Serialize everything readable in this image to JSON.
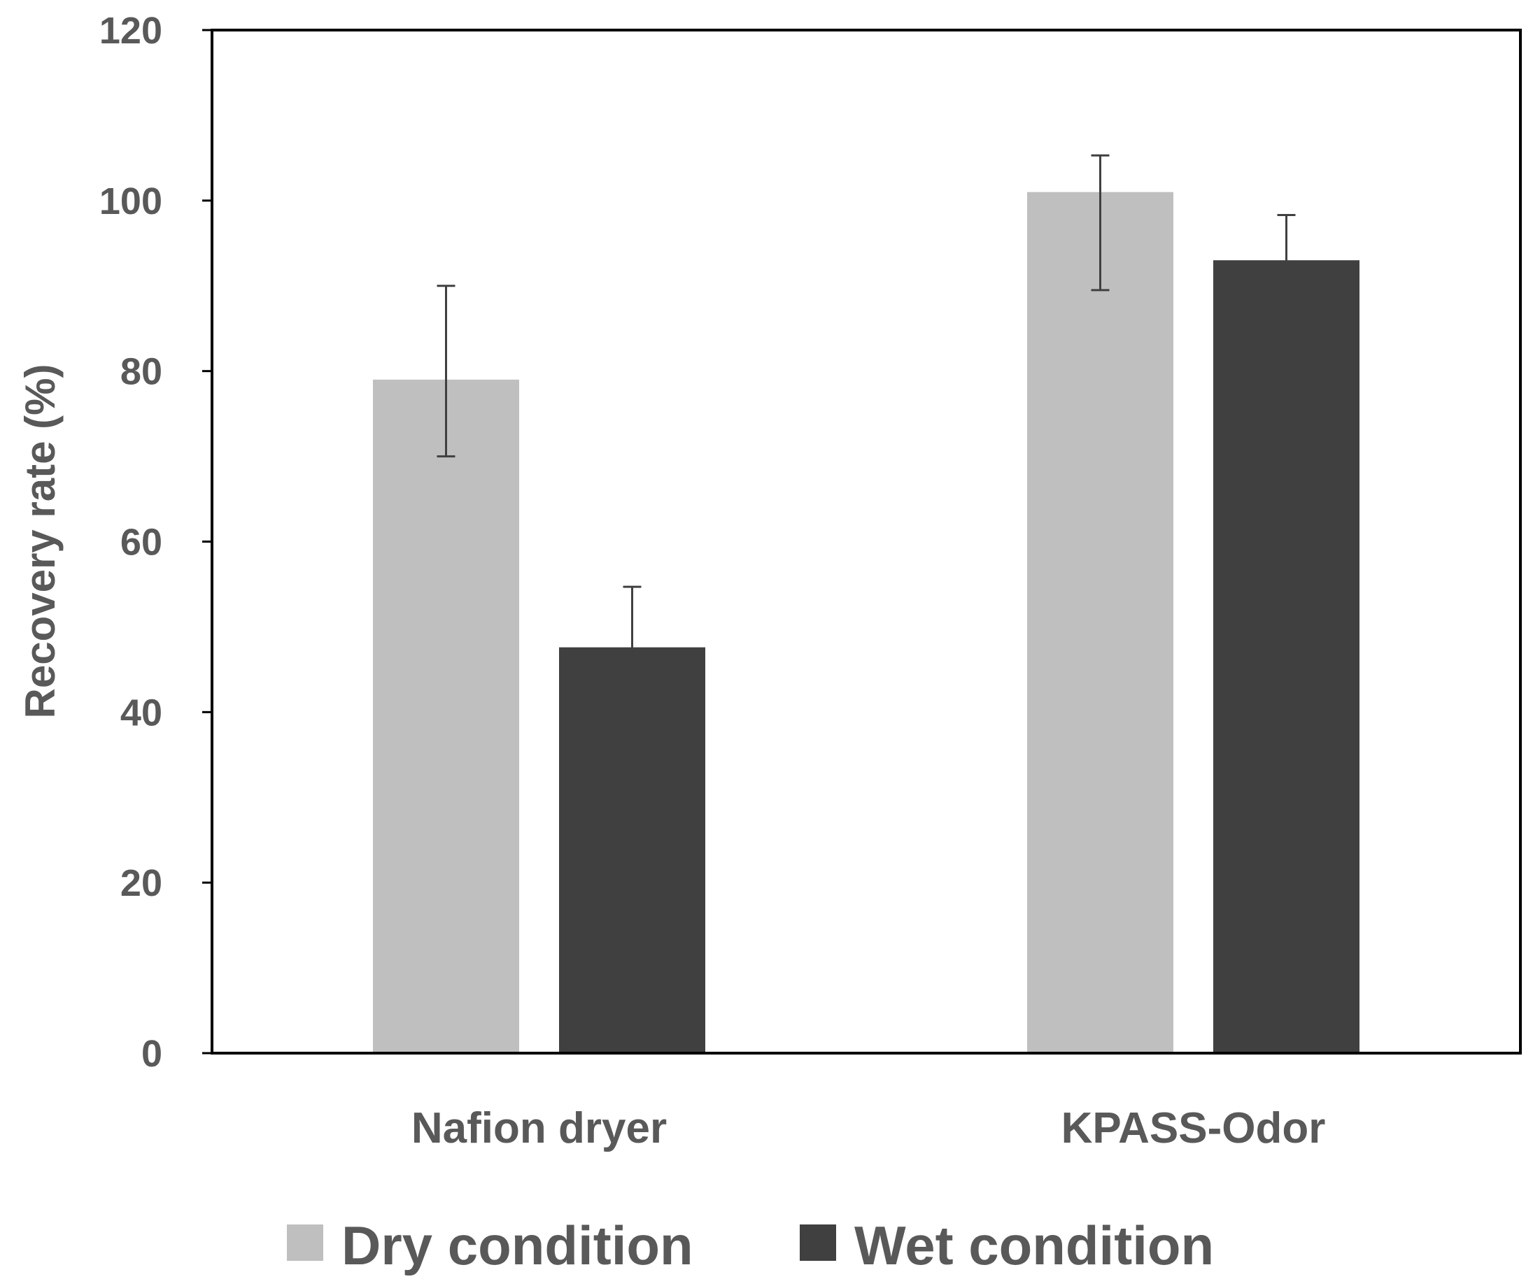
{
  "chart_data": {
    "type": "bar",
    "title": "",
    "xlabel": "",
    "ylabel": "Recovery rate (%)",
    "ylim": [
      0,
      120
    ],
    "yticks": [
      0,
      20,
      40,
      60,
      80,
      100,
      120
    ],
    "yticks_text": [
      "0",
      "20",
      "40",
      "60",
      "80",
      "100",
      "120"
    ],
    "categories": [
      "Nafion dryer",
      "KPASS-Odor"
    ],
    "series": [
      {
        "name": "Dry condition",
        "color": "#bfbfbf",
        "values": [
          79,
          101
        ],
        "error_low": [
          70,
          89.5
        ],
        "error_high": [
          90,
          105.3
        ]
      },
      {
        "name": "Wet condition",
        "color": "#404040",
        "values": [
          47.6,
          93
        ],
        "error_low": [
          40.3,
          85.4
        ],
        "error_high": [
          54.7,
          98.3
        ]
      }
    ],
    "legend": {
      "position": "bottom",
      "entries": [
        "Dry condition",
        "Wet condition"
      ]
    },
    "grid": false
  }
}
